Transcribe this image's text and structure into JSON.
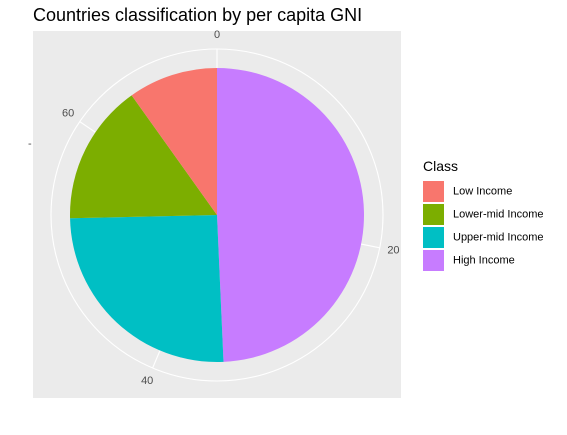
{
  "chart_data": {
    "type": "pie",
    "title": "Countries classification by per capita GNI",
    "xlabel": "",
    "ylabel": "",
    "y_axis_tick": "-",
    "background": "#EBEBEB",
    "gridline_color": "#FFFFFF",
    "grid": true,
    "coord": "polar",
    "start_angle_deg": 0,
    "direction": "clockwise",
    "theta_total": 71,
    "theta_ticks": [
      {
        "label": "0",
        "value": 0
      },
      {
        "label": "20",
        "value": 20
      },
      {
        "label": "40",
        "value": 40
      },
      {
        "label": "60",
        "value": 60
      }
    ],
    "slices": [
      {
        "label": "High Income",
        "value": 35,
        "color": "#C77CFF"
      },
      {
        "label": "Upper-mid Income",
        "value": 18,
        "color": "#00BFC4"
      },
      {
        "label": "Lower-mid Income",
        "value": 11,
        "color": "#7CAE00"
      },
      {
        "label": "Low Income",
        "value": 7,
        "color": "#F8766D"
      }
    ],
    "legend": {
      "title": "Class",
      "position": "right",
      "entries": [
        {
          "label": "Low Income",
          "color": "#F8766D"
        },
        {
          "label": "Lower-mid Income",
          "color": "#7CAE00"
        },
        {
          "label": "Upper-mid Income",
          "color": "#00BFC4"
        },
        {
          "label": "High Income",
          "color": "#C77CFF"
        }
      ]
    }
  }
}
